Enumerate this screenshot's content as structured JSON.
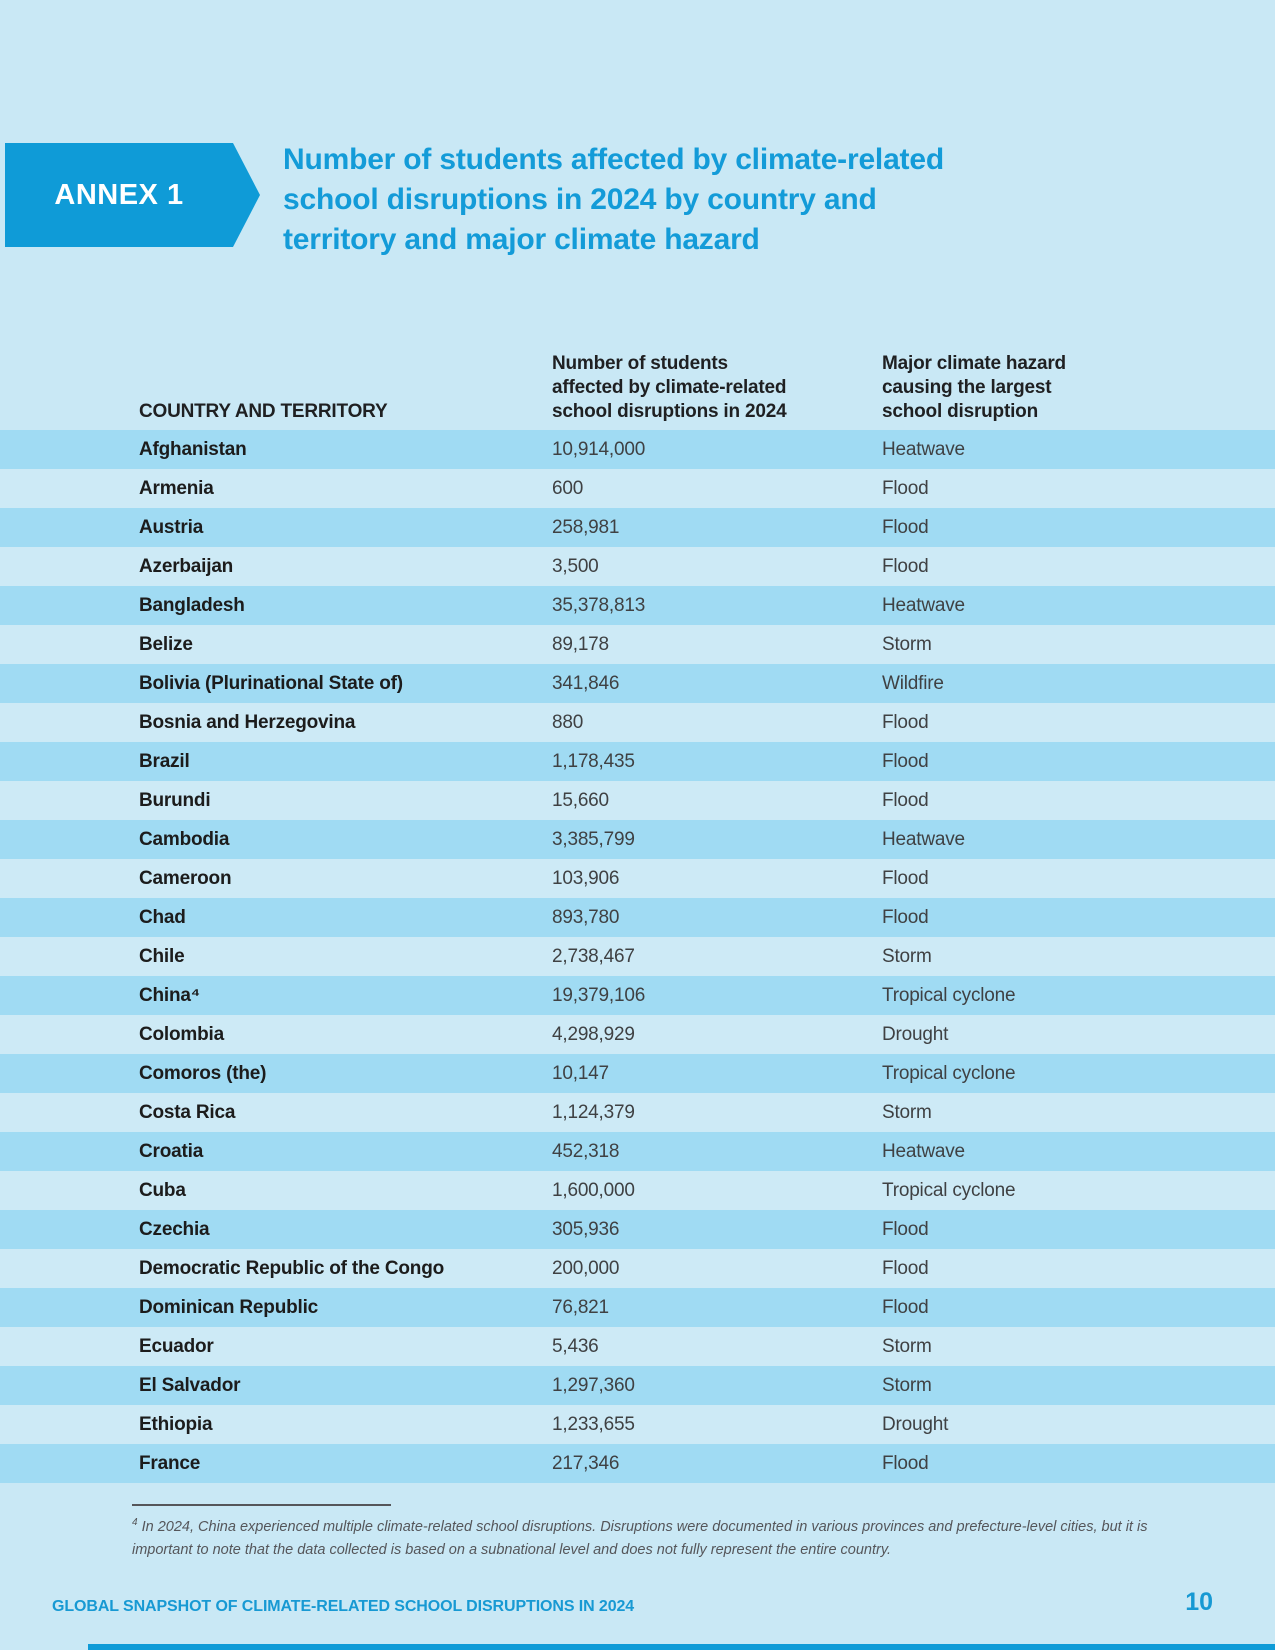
{
  "colors": {
    "accent_blue": "#0F9BD7",
    "page_background": "#C9E8F5",
    "row_dark": "#A0DBF3",
    "row_light": "#CDEAF6",
    "title_text": "#139BD8",
    "heading_text": "#1F2022",
    "cell_text": "#3F4143",
    "footnote_text": "#55565A"
  },
  "annex": {
    "label": "ANNEX 1"
  },
  "title": {
    "lines": [
      "Number of students affected by climate-related",
      "school disruptions in 2024 by country and",
      "territory and major climate hazard"
    ]
  },
  "table": {
    "header": {
      "col1": "COUNTRY AND TERRITORY",
      "col2_lines": [
        "Number of students",
        "affected by climate-related",
        "school disruptions in 2024"
      ],
      "col3_lines": [
        "Major climate hazard",
        "causing the largest",
        "school disruption"
      ]
    },
    "rows": [
      {
        "country": "Afghanistan",
        "students": "10,914,000",
        "hazard": "Heatwave"
      },
      {
        "country": "Armenia",
        "students": "600",
        "hazard": "Flood"
      },
      {
        "country": "Austria",
        "students": "258,981",
        "hazard": "Flood"
      },
      {
        "country": "Azerbaijan",
        "students": "3,500",
        "hazard": "Flood"
      },
      {
        "country": "Bangladesh",
        "students": "35,378,813",
        "hazard": "Heatwave"
      },
      {
        "country": "Belize",
        "students": "89,178",
        "hazard": "Storm"
      },
      {
        "country": "Bolivia (Plurinational State of)",
        "students": "341,846",
        "hazard": "Wildfire"
      },
      {
        "country": "Bosnia and Herzegovina",
        "students": "880",
        "hazard": "Flood"
      },
      {
        "country": "Brazil",
        "students": "1,178,435",
        "hazard": "Flood"
      },
      {
        "country": "Burundi",
        "students": "15,660",
        "hazard": "Flood"
      },
      {
        "country": "Cambodia",
        "students": "3,385,799",
        "hazard": "Heatwave"
      },
      {
        "country": "Cameroon",
        "students": "103,906",
        "hazard": "Flood"
      },
      {
        "country": "Chad",
        "students": "893,780",
        "hazard": "Flood"
      },
      {
        "country": "Chile",
        "students": "2,738,467",
        "hazard": "Storm"
      },
      {
        "country": "China⁴",
        "students": "19,379,106",
        "hazard": "Tropical cyclone"
      },
      {
        "country": "Colombia",
        "students": "4,298,929",
        "hazard": "Drought"
      },
      {
        "country": "Comoros (the)",
        "students": "10,147",
        "hazard": "Tropical cyclone"
      },
      {
        "country": "Costa Rica",
        "students": "1,124,379",
        "hazard": "Storm"
      },
      {
        "country": "Croatia",
        "students": "452,318",
        "hazard": "Heatwave"
      },
      {
        "country": "Cuba",
        "students": "1,600,000",
        "hazard": "Tropical cyclone"
      },
      {
        "country": "Czechia",
        "students": "305,936",
        "hazard": "Flood"
      },
      {
        "country": "Democratic Republic of the Congo",
        "students": "200,000",
        "hazard": "Flood"
      },
      {
        "country": "Dominican Republic",
        "students": "76,821",
        "hazard": "Flood"
      },
      {
        "country": "Ecuador",
        "students": "5,436",
        "hazard": "Storm"
      },
      {
        "country": "El Salvador",
        "students": "1,297,360",
        "hazard": "Storm"
      },
      {
        "country": "Ethiopia",
        "students": "1,233,655",
        "hazard": "Drought"
      },
      {
        "country": "France",
        "students": "217,346",
        "hazard": "Flood"
      }
    ]
  },
  "footnote": {
    "marker": "4",
    "line1": "In 2024, China experienced multiple climate-related school disruptions. Disruptions were documented in various provinces and prefecture-level cities, but it is",
    "line2": "important to note that the data collected is based on a subnational level and does not fully represent the entire country."
  },
  "footer": {
    "left": "GLOBAL SNAPSHOT OF CLIMATE-RELATED SCHOOL DISRUPTIONS IN 2024",
    "page_number": "10"
  }
}
